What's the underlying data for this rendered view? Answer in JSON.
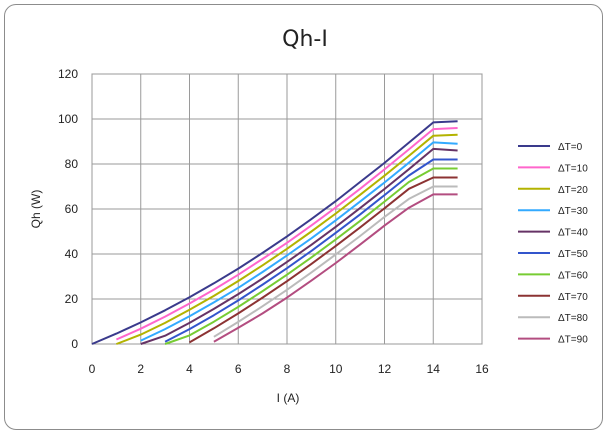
{
  "chart_data": {
    "type": "line",
    "title": "Qh-I",
    "xlabel": "I (A)",
    "ylabel": "Qh (W)",
    "xlim": [
      0,
      16
    ],
    "ylim": [
      0,
      120
    ],
    "xticks": [
      0,
      2,
      4,
      6,
      8,
      10,
      12,
      14,
      16
    ],
    "yticks": [
      0,
      20,
      40,
      60,
      80,
      100,
      120
    ],
    "grid": true,
    "legend_position": "right",
    "x": [
      0,
      1,
      2,
      3,
      4,
      5,
      6,
      7,
      8,
      9,
      10,
      11,
      12,
      13,
      14,
      15
    ],
    "series": [
      {
        "name": "ΔT=0",
        "color": "#3a3a8c",
        "values": [
          0,
          4.6,
          9.6,
          15,
          20.8,
          27,
          33.5,
          40.5,
          47.8,
          55.5,
          63.5,
          72,
          80.5,
          89.5,
          98.5,
          99
        ]
      },
      {
        "name": "ΔT=10",
        "color": "#ff66cc",
        "values": [
          null,
          2,
          6.8,
          12.2,
          18,
          24.2,
          30.8,
          37.8,
          45,
          52.7,
          60.7,
          69,
          77.6,
          86.5,
          95.5,
          96
        ]
      },
      {
        "name": "ΔT=20",
        "color": "#b3b300",
        "values": [
          null,
          0,
          4.2,
          9.4,
          15.2,
          21.4,
          28,
          35,
          42.3,
          50,
          58,
          66.3,
          74.8,
          83.6,
          92.6,
          93
        ]
      },
      {
        "name": "ΔT=30",
        "color": "#33aaff",
        "values": [
          null,
          null,
          1.5,
          6.6,
          12.3,
          18.5,
          25,
          32,
          39.4,
          47,
          55,
          63.3,
          71.8,
          80.6,
          89.6,
          89
        ]
      },
      {
        "name": "ΔT=40",
        "color": "#663366",
        "values": [
          null,
          null,
          0,
          3.7,
          9.4,
          15.6,
          22.2,
          29.1,
          36.5,
          44.1,
          52.1,
          60.4,
          68.9,
          77.7,
          86.7,
          86
        ]
      },
      {
        "name": "ΔT=50",
        "color": "#3355cc",
        "values": [
          null,
          null,
          null,
          1,
          6.6,
          12.8,
          19.4,
          26.4,
          33.7,
          41.4,
          49.4,
          57.6,
          66.2,
          74.9,
          82,
          82
        ]
      },
      {
        "name": "ΔT=60",
        "color": "#77cc33",
        "values": [
          null,
          null,
          null,
          0,
          3.8,
          9.9,
          16.5,
          23.5,
          30.8,
          38.5,
          46.5,
          54.7,
          63.3,
          72,
          78,
          78
        ]
      },
      {
        "name": "ΔT=70",
        "color": "#8c3333",
        "values": [
          null,
          null,
          null,
          null,
          0.7,
          7,
          13.6,
          20.6,
          27.9,
          35.6,
          43.6,
          51.8,
          60.3,
          69,
          74,
          74
        ]
      },
      {
        "name": "ΔT=80",
        "color": "#bbbbbb",
        "values": [
          null,
          null,
          null,
          null,
          null,
          3.2,
          9.8,
          16.8,
          24.1,
          31.8,
          39.8,
          48,
          56.5,
          64.5,
          70,
          70
        ]
      },
      {
        "name": "ΔT=90",
        "color": "#b34d80",
        "values": [
          null,
          null,
          null,
          null,
          null,
          1,
          7.2,
          13.6,
          20.6,
          28.2,
          36,
          44.2,
          52.6,
          60.6,
          66.5,
          66.5
        ]
      }
    ]
  }
}
